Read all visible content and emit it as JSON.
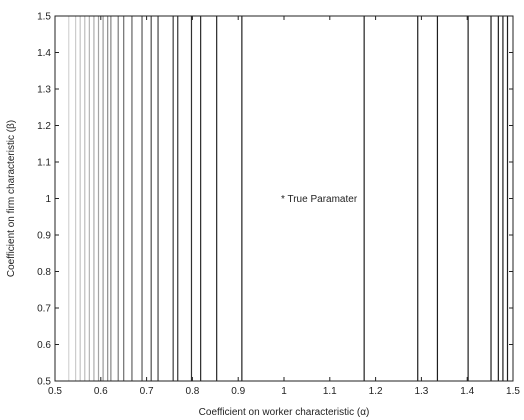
{
  "chart_data": {
    "type": "line",
    "xlabel": "Coefficient on worker characteristic (α)",
    "ylabel": "Coefficient on firm characteristic (β)",
    "xlim": [
      0.5,
      1.5
    ],
    "ylim": [
      0.5,
      1.5
    ],
    "xticks": [
      "0.5",
      "0.6",
      "0.7",
      "0.8",
      "0.9",
      "1",
      "1.1",
      "1.2",
      "1.3",
      "1.4",
      "1.5"
    ],
    "yticks": [
      "0.5",
      "0.6",
      "0.7",
      "0.8",
      "0.9",
      "1",
      "1.1",
      "1.2",
      "1.3",
      "1.4",
      "1.5"
    ],
    "grid": false,
    "contour_x_values": [
      0.53,
      0.545,
      0.555,
      0.565,
      0.575,
      0.585,
      0.595,
      0.605,
      0.615,
      0.622,
      0.638,
      0.65,
      0.668,
      0.69,
      0.71,
      0.725,
      0.758,
      0.768,
      0.798,
      0.818,
      0.853,
      0.908,
      1.175,
      1.292,
      1.335,
      1.402,
      1.452,
      1.468,
      1.478,
      1.488
    ],
    "contour_colors": [
      "#d4d4d4",
      "#cccccc",
      "#c4c4c4",
      "#bcbcbc",
      "#b4b4b4",
      "#acacac",
      "#a4a4a4",
      "#9a9a9a",
      "#8e8e8e",
      "#848484",
      "#7a7a7a",
      "#6e6e6e",
      "#626262",
      "#575757",
      "#4d4d4d",
      "#454545",
      "#3d3d3d",
      "#363636",
      "#303030",
      "#2b2b2b",
      "#262626",
      "#222222",
      "#1e1e1e",
      "#1e1e1e",
      "#1e1e1e",
      "#1e1e1e",
      "#1e1e1e",
      "#1e1e1e",
      "#1e1e1e",
      "#1e1e1e"
    ],
    "annotation": {
      "text": "* True Paramater",
      "x": 1.0,
      "y": 1.0
    }
  }
}
